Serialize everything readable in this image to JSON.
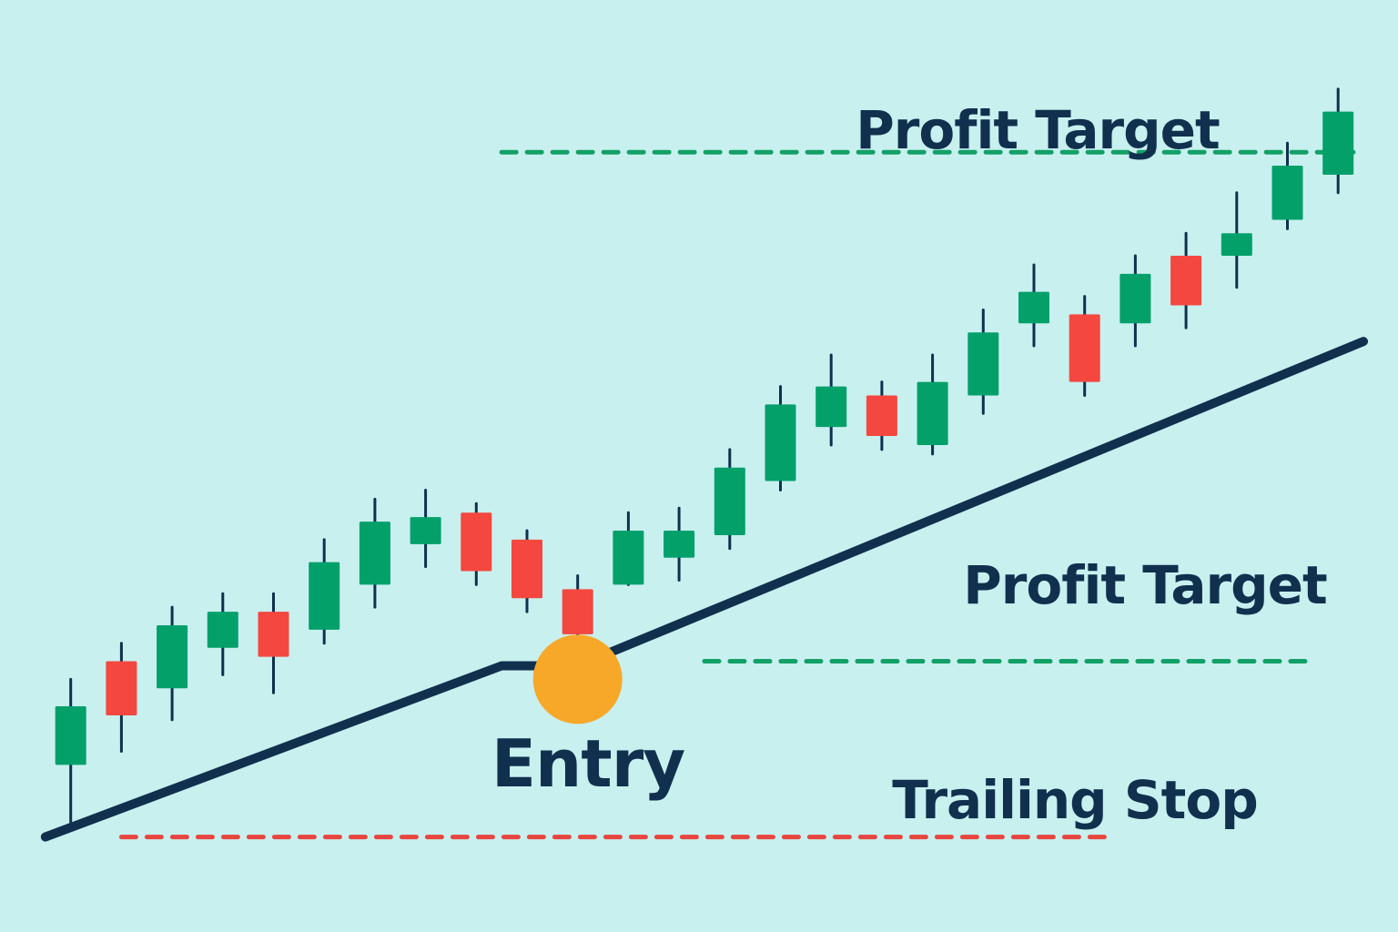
{
  "chart_data": {
    "type": "candlestick",
    "title": "",
    "xlabel": "",
    "ylabel": "",
    "grid": false,
    "y_direction": "price increases upward (no axis printed)",
    "colors": {
      "background": "#c8f0ef",
      "bullish": "#03a06a",
      "bearish": "#f4473f",
      "wick": "#10304e",
      "trailing_stop_line": "#10304e",
      "profit_target_line": "#12a066",
      "stop_dashed_line": "#e8453f",
      "entry_marker": "#f8a829",
      "label_text": "#10304e"
    },
    "candles": [
      {
        "index": 1,
        "open": 18,
        "close": 31,
        "high": 37,
        "low": 5,
        "direction": "up"
      },
      {
        "index": 2,
        "open": 29,
        "close": 41,
        "high": 45,
        "low": 21,
        "direction": "down"
      },
      {
        "index": 3,
        "open": 35,
        "close": 49,
        "high": 53,
        "low": 28,
        "direction": "up"
      },
      {
        "index": 4,
        "open": 44,
        "close": 52,
        "high": 56,
        "low": 38,
        "direction": "up"
      },
      {
        "index": 5,
        "open": 42,
        "close": 52,
        "high": 56,
        "low": 34,
        "direction": "down"
      },
      {
        "index": 6,
        "open": 48,
        "close": 63,
        "high": 68,
        "low": 45,
        "direction": "up"
      },
      {
        "index": 7,
        "open": 58,
        "close": 72,
        "high": 77,
        "low": 53,
        "direction": "up"
      },
      {
        "index": 8,
        "open": 67,
        "close": 73,
        "high": 79,
        "low": 62,
        "direction": "up"
      },
      {
        "index": 9,
        "open": 61,
        "close": 74,
        "high": 76,
        "low": 58,
        "direction": "down"
      },
      {
        "index": 10,
        "open": 55,
        "close": 68,
        "high": 70,
        "low": 52,
        "direction": "down"
      },
      {
        "index": 11,
        "open": 47,
        "close": 57,
        "high": 60,
        "low": 44,
        "direction": "down"
      },
      {
        "index": 12,
        "open": 58,
        "close": 70,
        "high": 74,
        "low": 58,
        "direction": "up"
      },
      {
        "index": 13,
        "open": 64,
        "close": 70,
        "high": 75,
        "low": 59,
        "direction": "up"
      },
      {
        "index": 14,
        "open": 69,
        "close": 84,
        "high": 88,
        "low": 66,
        "direction": "up"
      },
      {
        "index": 15,
        "open": 81,
        "close": 98,
        "high": 102,
        "low": 79,
        "direction": "up"
      },
      {
        "index": 16,
        "open": 93,
        "close": 102,
        "high": 109,
        "low": 89,
        "direction": "up"
      },
      {
        "index": 17,
        "open": 91,
        "close": 100,
        "high": 103,
        "low": 88,
        "direction": "down"
      },
      {
        "index": 18,
        "open": 89,
        "close": 103,
        "high": 109,
        "low": 87,
        "direction": "up"
      },
      {
        "index": 19,
        "open": 100,
        "close": 114,
        "high": 119,
        "low": 96,
        "direction": "up"
      },
      {
        "index": 20,
        "open": 116,
        "close": 123,
        "high": 129,
        "low": 111,
        "direction": "up"
      },
      {
        "index": 21,
        "open": 103,
        "close": 118,
        "high": 122,
        "low": 100,
        "direction": "down"
      },
      {
        "index": 22,
        "open": 116,
        "close": 127,
        "high": 131,
        "low": 111,
        "direction": "up"
      },
      {
        "index": 23,
        "open": 120,
        "close": 131,
        "high": 136,
        "low": 115,
        "direction": "down"
      },
      {
        "index": 24,
        "open": 131,
        "close": 136,
        "high": 145,
        "low": 124,
        "direction": "up"
      },
      {
        "index": 25,
        "open": 139,
        "close": 151,
        "high": 156,
        "low": 137,
        "direction": "up"
      },
      {
        "index": 26,
        "open": 149,
        "close": 163,
        "high": 168,
        "low": 145,
        "direction": "up"
      }
    ],
    "trailing_stop_line": [
      {
        "x": 0.5,
        "y": 2
      },
      {
        "x": 9.5,
        "y": 40
      },
      {
        "x": 11,
        "y": 40
      },
      {
        "x": 26.5,
        "y": 112
      }
    ],
    "profit_target_upper": {
      "level": 154,
      "x_from": 9.5,
      "x_to": 26.3
    },
    "profit_target_lower": {
      "level": 41,
      "x_from": 13.5,
      "x_to": 25.5
    },
    "trailing_stop_dashed": {
      "level": 2,
      "x_from": 2,
      "x_to": 21.5
    },
    "entry_point": {
      "x": 11,
      "y": 37
    },
    "labels": {
      "profit_target_upper": "Profit Target",
      "profit_target_lower": "Profit Target",
      "entry": "Entry",
      "trailing_stop": "Trailing Stop"
    }
  }
}
